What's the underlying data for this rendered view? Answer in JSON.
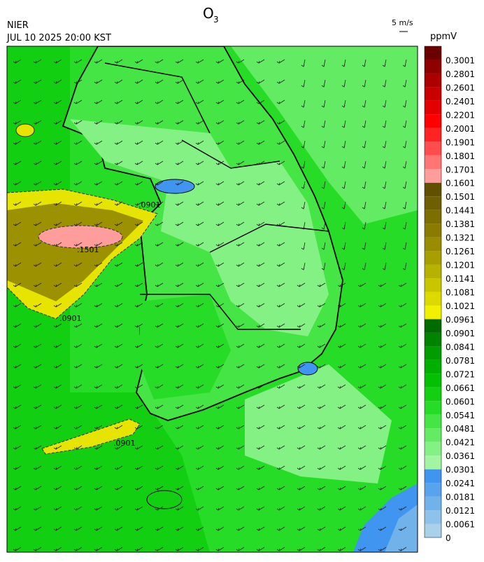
{
  "header": {
    "title": "O",
    "title_subscript": "3",
    "agency": "NIER",
    "timestamp": "JUL 10 2025 20:00 KST",
    "wind_scale": "5 m/s",
    "unit": "ppmV"
  },
  "colorbar": {
    "levels": [
      0,
      0.0061,
      0.0121,
      0.0181,
      0.0241,
      0.0301,
      0.0361,
      0.0421,
      0.0481,
      0.0541,
      0.0601,
      0.0661,
      0.0721,
      0.0781,
      0.0841,
      0.0901,
      0.0961,
      0.1021,
      0.1081,
      0.1141,
      0.1201,
      0.1261,
      0.1321,
      0.1381,
      0.1441,
      0.1501,
      0.1601,
      0.1701,
      0.1801,
      0.1901,
      0.2001,
      0.2201,
      0.2401,
      0.2601,
      0.2801,
      0.3001
    ],
    "colors": [
      "#a9d1ec",
      "#8dc2ea",
      "#72b2ea",
      "#58a3ec",
      "#3f95ef",
      "#a2f6a2",
      "#84f184",
      "#63ec63",
      "#45e545",
      "#26dc26",
      "#12cf12",
      "#03c003",
      "#00b000",
      "#009c00",
      "#008400",
      "#006c00",
      "#f2f000",
      "#dcda00",
      "#c9c600",
      "#b6b200",
      "#a89e00",
      "#998c00",
      "#8a7c00",
      "#7c6e00",
      "#6e6000",
      "#605000",
      "#ff9c9c",
      "#ff7474",
      "#ff4c4c",
      "#ff2424",
      "#ff0000",
      "#e40000",
      "#c80000",
      "#ac0000",
      "#900000",
      "#6c0000"
    ]
  },
  "contour_labels": [
    ".0901",
    ".1501",
    ".0901",
    ".0901"
  ]
}
